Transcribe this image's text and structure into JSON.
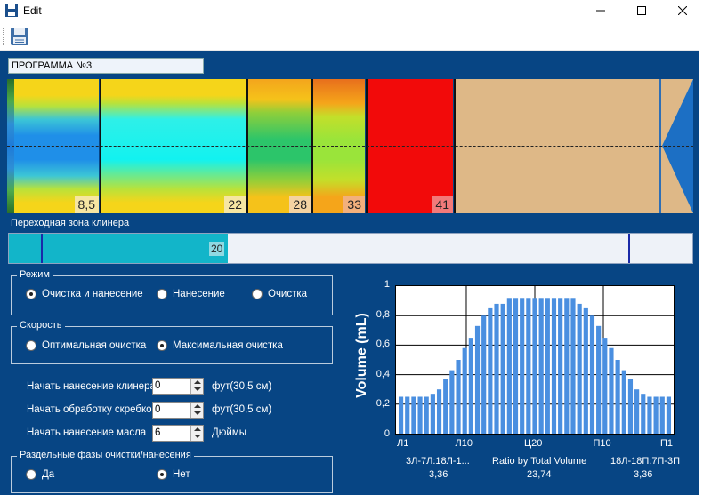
{
  "window": {
    "title": "Edit"
  },
  "program_name": "ПРОГРАММА №3",
  "heatmap": {
    "segments": [
      {
        "value": "8,5",
        "scheme": "blue"
      },
      {
        "value": "22",
        "scheme": "cyan"
      },
      {
        "value": "28",
        "scheme": "green"
      },
      {
        "value": "33",
        "scheme": "lime"
      },
      {
        "value": "41",
        "scheme": "red"
      }
    ]
  },
  "transition": {
    "label": "Переходная зона клинера",
    "value": "20"
  },
  "mode": {
    "title": "Режим",
    "options": [
      "Очистка и нанесение",
      "Нанесение",
      "Очистка"
    ],
    "selected": 0
  },
  "speed": {
    "title": "Скорость",
    "options": [
      "Оптимальная очистка",
      "Максимальная очистка"
    ],
    "selected": 1
  },
  "fields": [
    {
      "label": "Начать нанесение клинера",
      "value": "0",
      "unit": "фут(30,5 см)"
    },
    {
      "label": "Начать обработку скребком",
      "value": "0",
      "unit": "фут(30,5 см)"
    },
    {
      "label": "Начать нанесение масла",
      "value": "6",
      "unit": "Дюймы"
    }
  ],
  "split_phases": {
    "title": "Раздельные фазы очистки/нанесения",
    "options": [
      "Да",
      "Нет"
    ],
    "selected": 1
  },
  "chart_data": {
    "type": "bar",
    "ylabel": "Volume (mL)",
    "ylim": [
      0,
      1
    ],
    "yticks": [
      "0",
      "0,2",
      "0,4",
      "0,6",
      "0,8",
      "1"
    ],
    "xticks": [
      "Л1",
      "Л10",
      "Ц20",
      "П10",
      "П1"
    ],
    "color": "#4a8fe0",
    "values": [
      0.25,
      0.25,
      0.25,
      0.25,
      0.25,
      0.27,
      0.3,
      0.37,
      0.43,
      0.5,
      0.58,
      0.65,
      0.73,
      0.8,
      0.85,
      0.88,
      0.88,
      0.92,
      0.92,
      0.92,
      0.92,
      0.92,
      0.92,
      0.92,
      0.92,
      0.92,
      0.92,
      0.92,
      0.88,
      0.85,
      0.8,
      0.73,
      0.65,
      0.58,
      0.5,
      0.43,
      0.37,
      0.3,
      0.27,
      0.25,
      0.25,
      0.25,
      0.25
    ],
    "footer": {
      "left_label": "3Л-7Л:18Л-1...",
      "left_value": "3,36",
      "center_label": "Ratio by Total Volume",
      "center_value": "23,74",
      "right_label": "18Л-18П:7П-3П",
      "right_value": "3,36"
    }
  }
}
